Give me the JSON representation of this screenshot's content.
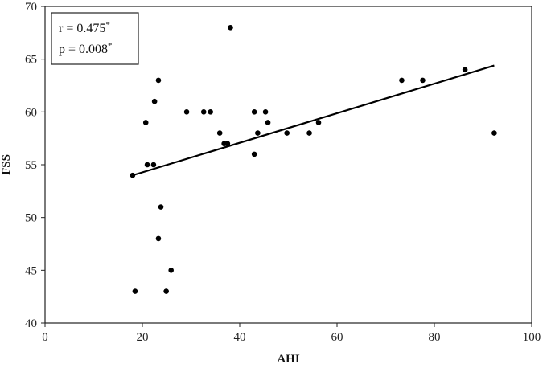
{
  "chart_data": {
    "type": "scatter",
    "title": "",
    "xlabel": "AHI",
    "ylabel": "FSS",
    "xlim": [
      0,
      100
    ],
    "ylim": [
      40,
      70
    ],
    "xticks": [
      0,
      20,
      40,
      60,
      80,
      100
    ],
    "yticks": [
      40,
      45,
      50,
      55,
      60,
      65,
      70
    ],
    "grid": false,
    "points": [
      {
        "x": 18.0,
        "y": 54
      },
      {
        "x": 18.5,
        "y": 43
      },
      {
        "x": 20.7,
        "y": 59
      },
      {
        "x": 21.0,
        "y": 55
      },
      {
        "x": 22.3,
        "y": 55
      },
      {
        "x": 22.5,
        "y": 61
      },
      {
        "x": 23.3,
        "y": 63
      },
      {
        "x": 23.3,
        "y": 48
      },
      {
        "x": 23.8,
        "y": 51
      },
      {
        "x": 24.9,
        "y": 43
      },
      {
        "x": 25.9,
        "y": 45
      },
      {
        "x": 29.1,
        "y": 60
      },
      {
        "x": 32.6,
        "y": 60
      },
      {
        "x": 34.0,
        "y": 60
      },
      {
        "x": 35.9,
        "y": 58
      },
      {
        "x": 36.8,
        "y": 57
      },
      {
        "x": 37.5,
        "y": 57
      },
      {
        "x": 38.1,
        "y": 68
      },
      {
        "x": 43.0,
        "y": 60
      },
      {
        "x": 43.0,
        "y": 56
      },
      {
        "x": 43.7,
        "y": 58
      },
      {
        "x": 45.3,
        "y": 60
      },
      {
        "x": 45.8,
        "y": 59
      },
      {
        "x": 49.7,
        "y": 58
      },
      {
        "x": 54.3,
        "y": 58
      },
      {
        "x": 56.2,
        "y": 59
      },
      {
        "x": 73.3,
        "y": 63
      },
      {
        "x": 77.6,
        "y": 63
      },
      {
        "x": 86.3,
        "y": 64
      },
      {
        "x": 92.3,
        "y": 58
      }
    ],
    "trendline": {
      "x": [
        18.0,
        92.3
      ],
      "y": [
        54.0,
        64.4
      ]
    },
    "annotation": {
      "position": "top-left",
      "r_text": "r = 0.475",
      "r_mark": "*",
      "p_text": "p = 0.008",
      "p_mark": "*"
    }
  }
}
